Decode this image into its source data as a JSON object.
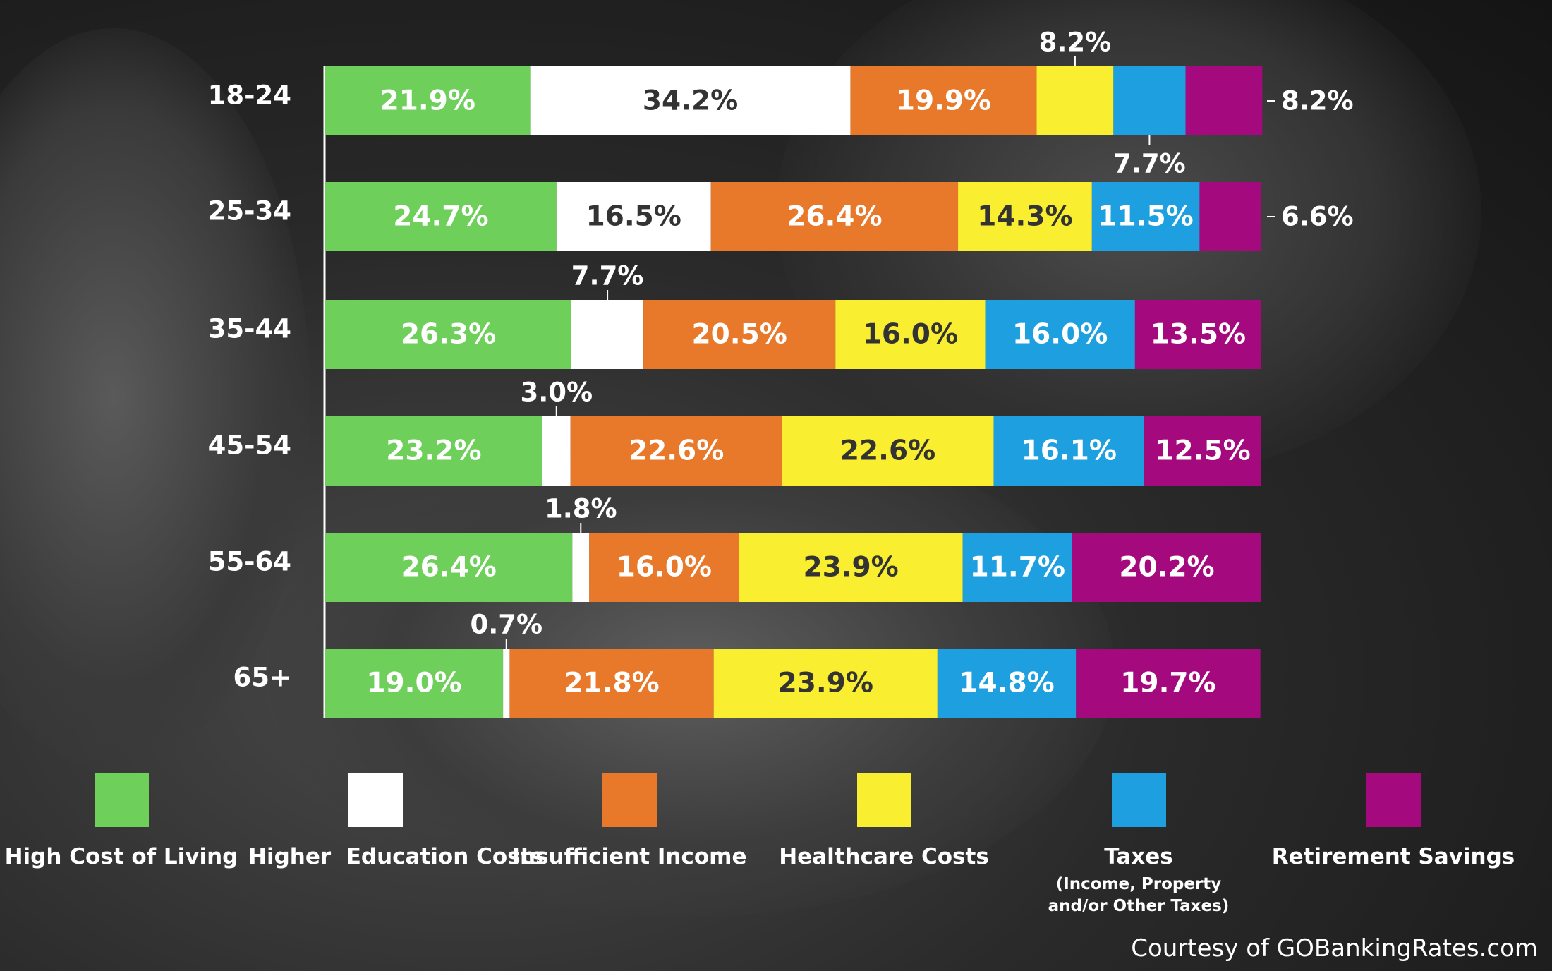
{
  "chart_data": {
    "type": "bar",
    "orientation": "horizontal",
    "stacked": true,
    "categories": [
      "18-24",
      "25-34",
      "35-44",
      "45-54",
      "55-64",
      "65+"
    ],
    "series": [
      {
        "name": "High Cost of Living",
        "color": "#6ecf5b",
        "label_color": "#ffffff",
        "values": [
          21.9,
          24.7,
          26.3,
          23.2,
          26.4,
          19.0
        ],
        "labels": [
          "21.9%",
          "24.7%",
          "26.3%",
          "23.2%",
          "26.4%",
          "19.0%"
        ]
      },
      {
        "name": "Higher  Education Costs",
        "color": "#ffffff",
        "label_color": "#333333",
        "values": [
          34.2,
          16.5,
          7.7,
          3.0,
          1.8,
          0.7
        ],
        "labels": [
          "34.2%",
          "16.5%",
          "7.7%",
          "3.0%",
          "1.8%",
          "0.7%"
        ]
      },
      {
        "name": "Insufficient Income",
        "color": "#e8792b",
        "label_color": "#ffffff",
        "values": [
          19.9,
          26.4,
          20.5,
          22.6,
          16.0,
          21.8
        ],
        "labels": [
          "19.9%",
          "26.4%",
          "20.5%",
          "22.6%",
          "16.0%",
          "21.8%"
        ]
      },
      {
        "name": "Healthcare Costs",
        "color": "#f9ee2f",
        "label_color": "#333333",
        "values": [
          8.2,
          14.3,
          16.0,
          22.6,
          23.9,
          23.9
        ],
        "labels": [
          "8.2%",
          "14.3%",
          "16.0%",
          "22.6%",
          "23.9%",
          "23.9%"
        ]
      },
      {
        "name": "Taxes",
        "color": "#1ea0e0",
        "label_color": "#ffffff",
        "values": [
          7.7,
          11.5,
          16.0,
          16.1,
          11.7,
          14.8
        ],
        "labels": [
          "7.7%",
          "11.5%",
          "16.0%",
          "16.1%",
          "11.7%",
          "14.8%"
        ]
      },
      {
        "name": "Retirement Savings",
        "color": "#a5097e",
        "label_color": "#ffffff",
        "values": [
          8.2,
          6.6,
          13.5,
          12.5,
          20.2,
          19.7
        ],
        "labels": [
          "8.2%",
          "6.6%",
          "13.5%",
          "12.5%",
          "20.2%",
          "19.7%"
        ]
      }
    ],
    "xlim": [
      0,
      100
    ],
    "grid": false,
    "legend_position": "bottom"
  },
  "legend": {
    "taxes_subtitle_line1": "(Income, Property",
    "taxes_subtitle_line2": "and/or Other Taxes)"
  },
  "credit": "Courtesy of GOBankingRates.com"
}
